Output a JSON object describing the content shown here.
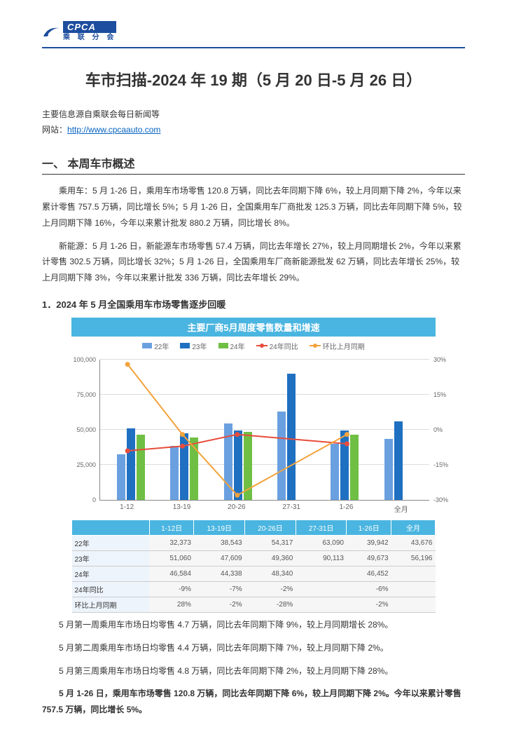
{
  "header": {
    "logo_main": "CPCA",
    "logo_sub": "乘 联 分 会"
  },
  "title": "车市扫描-2024 年 19 期（5 月 20 日-5 月 26 日）",
  "source_line1": "主要信息源自乘联会每日新闻等",
  "source_line2_prefix": "网站：",
  "source_url": "http://www.cpcaauto.com",
  "section1_heading": "一、  本周车市概述",
  "para1": "乘用车：5 月 1-26 日，乘用车市场零售 120.8 万辆，同比去年同期下降 6%，较上月同期下降 2%，今年以来累计零售 757.5 万辆，同比增长 5%；5 月 1-26 日，全国乘用车厂商批发 125.3 万辆，同比去年同期下降 5%，较上月同期下降 16%，今年以来累计批发 880.2 万辆，同比增长 8%。",
  "para2": "新能源：5 月 1-26 日，新能源车市场零售 57.4 万辆，同比去年增长 27%，较上月同期增长 2%，今年以来累计零售 302.5 万辆，同比增长 32%；5 月 1-26 日，全国乘用车厂商新能源批发 62 万辆，同比去年增长 25%，较上月同期下降 3%，今年以来累计批发 336 万辆，同比去年增长 29%。",
  "sub1_heading": "1．2024 年 5 月全国乘用车市场零售逐步回暖",
  "chart": {
    "title": "主要厂商5月周度零售数量和增速",
    "legend": [
      {
        "type": "bar",
        "label": "22年",
        "color": "#6aa0e0"
      },
      {
        "type": "bar",
        "label": "23年",
        "color": "#1f70c1"
      },
      {
        "type": "bar",
        "label": "24年",
        "color": "#6fbf44"
      },
      {
        "type": "line",
        "label": "24年同比",
        "color": "#e74c3c"
      },
      {
        "type": "line",
        "label": "环比上月同期",
        "color": "#f2a33c"
      }
    ],
    "y_left": {
      "min": 0,
      "max": 100000,
      "step": 25000
    },
    "y_right": {
      "min": -30,
      "max": 30,
      "step": 15
    },
    "grid_color": "#dcdcdc",
    "categories": [
      "1-12",
      "13-19",
      "20-26",
      "27-31",
      "1-26",
      "全月"
    ],
    "series_bar": {
      "22年": [
        32373,
        38543,
        54317,
        63090,
        39942,
        43676
      ],
      "23年": [
        51060,
        47609,
        49360,
        90113,
        49673,
        56196
      ],
      "24年": [
        46584,
        44338,
        48340,
        null,
        46452,
        null
      ]
    },
    "series_line_right": {
      "24年同比": [
        -9,
        -7,
        -2,
        null,
        -6,
        null
      ],
      "环比上月同期": [
        28,
        -2,
        -28,
        null,
        -2,
        null
      ]
    }
  },
  "table": {
    "columns": [
      "",
      "1-12日",
      "13-19日",
      "20-26日",
      "27-31日",
      "1-26日",
      "全月"
    ],
    "rows": [
      [
        "22年",
        "32,373",
        "38,543",
        "54,317",
        "63,090",
        "39,942",
        "43,676"
      ],
      [
        "23年",
        "51,060",
        "47,609",
        "49,360",
        "90,113",
        "49,673",
        "56,196"
      ],
      [
        "24年",
        "46,584",
        "44,338",
        "48,340",
        "",
        "46,452",
        ""
      ],
      [
        "24年同比",
        "-9%",
        "-7%",
        "-2%",
        "",
        "-6%",
        ""
      ],
      [
        "环比上月同期",
        "28%",
        "-2%",
        "-28%",
        "",
        "-2%",
        ""
      ]
    ]
  },
  "para_w1": "5 月第一周乘用车市场日均零售 4.7 万辆，同比去年同期下降 9%，较上月同期增长 28%。",
  "para_w2": "5 月第二周乘用车市场日均零售 4.4 万辆，同比去年同期下降 7%，较上月同期下降 2%。",
  "para_w3": "5 月第三周乘用车市场日均零售 4.8 万辆，同比去年同期下降 2%，较上月同期下降 28%。",
  "para_summary": "5 月 1-26 日，乘用车市场零售 120.8 万辆，同比去年同期下降 6%，较上月同期下降 2%。今年以来累计零售 757.5 万辆，同比增长 5%。",
  "colors": {
    "brand": "#1d4d9e",
    "link": "#0563c1",
    "chart_header": "#4ab5e0"
  }
}
